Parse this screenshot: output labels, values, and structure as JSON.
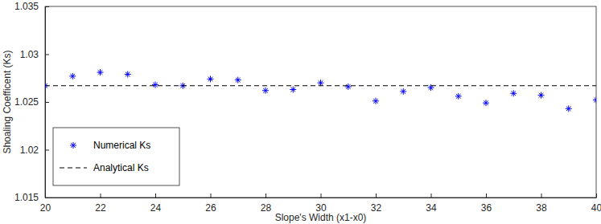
{
  "chart_data": {
    "type": "scatter",
    "x_label": "Slope's Width (x1-x0)",
    "y_label": "Shoaling Coefficent (Ks)",
    "series": [
      {
        "name": "Numerical Ks",
        "type": "scatter",
        "marker": "asterisk",
        "color": "#0000ff",
        "x": [
          20,
          21,
          22,
          23,
          24,
          25,
          26,
          27,
          28,
          29,
          30,
          31,
          32,
          33,
          34,
          35,
          36,
          37,
          38,
          39,
          40
        ],
        "values": [
          1.0267,
          1.0277,
          1.0281,
          1.0279,
          1.0268,
          1.0267,
          1.0274,
          1.0273,
          1.0262,
          1.0263,
          1.027,
          1.0266,
          1.0251,
          1.0261,
          1.0265,
          1.0256,
          1.0249,
          1.0259,
          1.0257,
          1.0243,
          1.0252
        ]
      },
      {
        "name": "Analytical Ks",
        "type": "line",
        "line_style": "dashed",
        "color": "#000000",
        "x": [
          20,
          40
        ],
        "values": [
          1.0267,
          1.0267
        ]
      }
    ],
    "xlim": [
      20,
      40
    ],
    "xticks": [
      20,
      22,
      24,
      26,
      28,
      30,
      32,
      34,
      36,
      38,
      40
    ],
    "ylim": [
      1.015,
      1.035
    ],
    "yticks": [
      1.015,
      1.02,
      1.025,
      1.03,
      1.035
    ],
    "grid": false,
    "legend": "lower left"
  }
}
